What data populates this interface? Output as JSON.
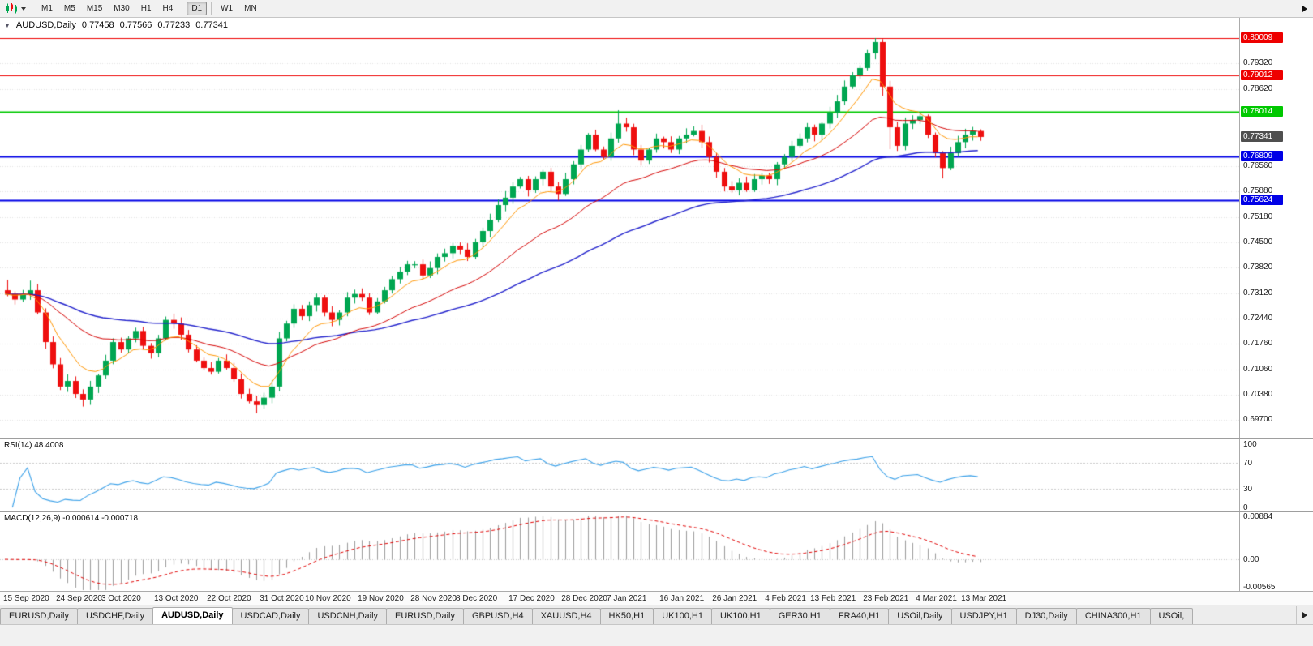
{
  "toolbar": {
    "timeframes": [
      {
        "label": "M1",
        "active": false,
        "gap_after": false
      },
      {
        "label": "M5",
        "active": false,
        "gap_after": false
      },
      {
        "label": "M15",
        "active": false,
        "gap_after": false
      },
      {
        "label": "M30",
        "active": false,
        "gap_after": false
      },
      {
        "label": "H1",
        "active": false,
        "gap_after": false
      },
      {
        "label": "H4",
        "active": false,
        "gap_after": true
      },
      {
        "label": "D1",
        "active": true,
        "gap_after": true
      },
      {
        "label": "W1",
        "active": false,
        "gap_after": false
      },
      {
        "label": "MN",
        "active": false,
        "gap_after": false
      }
    ]
  },
  "icons": {
    "one_click_arrow": "▼"
  },
  "chart_header": {
    "symbol": "AUDUSD,Daily",
    "open": "0.77458",
    "high": "0.77566",
    "low": "0.77233",
    "close": "0.77341"
  },
  "chart_data": {
    "type": "candlestick",
    "title": "AUDUSD,Daily",
    "first_open": 0.732,
    "closes": [
      0.731,
      0.7295,
      0.7308,
      0.732,
      0.726,
      0.718,
      0.712,
      0.706,
      0.7075,
      0.704,
      0.7025,
      0.706,
      0.709,
      0.713,
      0.718,
      0.716,
      0.719,
      0.721,
      0.717,
      0.715,
      0.719,
      0.724,
      0.723,
      0.72,
      0.716,
      0.713,
      0.711,
      0.71,
      0.713,
      0.711,
      0.708,
      0.704,
      0.702,
      0.701,
      0.703,
      0.706,
      0.719,
      0.723,
      0.727,
      0.725,
      0.728,
      0.73,
      0.726,
      0.724,
      0.726,
      0.73,
      0.731,
      0.73,
      0.726,
      0.729,
      0.732,
      0.735,
      0.737,
      0.739,
      0.739,
      0.736,
      0.738,
      0.741,
      0.742,
      0.744,
      0.743,
      0.741,
      0.745,
      0.748,
      0.751,
      0.755,
      0.757,
      0.76,
      0.762,
      0.759,
      0.762,
      0.764,
      0.76,
      0.758,
      0.762,
      0.766,
      0.77,
      0.774,
      0.77,
      0.768,
      0.773,
      0.777,
      0.776,
      0.77,
      0.767,
      0.77,
      0.773,
      0.772,
      0.77,
      0.773,
      0.774,
      0.775,
      0.772,
      0.768,
      0.764,
      0.76,
      0.759,
      0.761,
      0.759,
      0.762,
      0.763,
      0.762,
      0.766,
      0.768,
      0.771,
      0.773,
      0.776,
      0.774,
      0.777,
      0.78,
      0.783,
      0.787,
      0.79,
      0.792,
      0.796,
      0.799,
      0.787,
      0.776,
      0.771,
      0.777,
      0.778,
      0.779,
      0.774,
      0.769,
      0.765,
      0.769,
      0.772,
      0.774,
      0.775,
      0.7734
    ],
    "wick_overrides": {
      "0": {
        "high": 0.7348
      },
      "3": {
        "high": 0.7346
      },
      "10": {
        "low": 0.7006
      },
      "21": {
        "high": 0.7249
      },
      "33": {
        "low": 0.6988
      },
      "81": {
        "high": 0.7806
      },
      "115": {
        "high": 0.8001
      },
      "116": {
        "low": 0.7845
      },
      "117": {
        "low": 0.7701
      },
      "124": {
        "low": 0.7622
      }
    },
    "x_labels": [
      "15 Sep 2020",
      "24 Sep 2020",
      "3 Oct 2020",
      "13 Oct 2020",
      "22 Oct 2020",
      "31 Oct 2020",
      "10 Nov 2020",
      "19 Nov 2020",
      "28 Nov 2020",
      "8 Dec 2020",
      "17 Dec 2020",
      "28 Dec 2020",
      "7 Jan 2021",
      "16 Jan 2021",
      "26 Jan 2021",
      "4 Feb 2021",
      "13 Feb 2021",
      "23 Feb 2021",
      "4 Mar 2021",
      "13 Mar 2021"
    ],
    "label_step": 6.7,
    "y_ticks": [
      0.7932,
      0.7862,
      0.7656,
      0.7588,
      0.7518,
      0.745,
      0.7382,
      0.7312,
      0.7244,
      0.7176,
      0.7106,
      0.7038,
      0.697
    ],
    "price_scale": {
      "top": 0.80556,
      "bottom": 0.69219
    },
    "hlines": [
      {
        "price": 0.80009,
        "color": "#ee0000",
        "width": 1
      },
      {
        "price": 0.79012,
        "color": "#ee0000",
        "width": 1
      },
      {
        "price": 0.78014,
        "color": "#00c800",
        "width": 2
      },
      {
        "price": 0.76809,
        "color": "#0000e6",
        "width": 2
      },
      {
        "price": 0.75624,
        "color": "#0000e6",
        "width": 2
      }
    ],
    "current_price": 0.77341,
    "moving_averages": [
      {
        "period": 55,
        "color": "#2222cc",
        "width": 1.4
      },
      {
        "period": 24,
        "color": "#d40000",
        "width": 1
      },
      {
        "period": 8,
        "color": "#ff9500",
        "width": 1
      }
    ],
    "colors": {
      "up": "#00a651",
      "down": "#ee0f0f",
      "grid": "#e3e3e3",
      "current_tag": "#4f4f4f"
    },
    "indicators": {
      "rsi": {
        "label": "RSI(14) 48.4008",
        "period": 14,
        "levels": [
          100,
          70,
          30,
          0
        ],
        "dotted_levels": [
          70,
          30
        ],
        "line_color": "#3aa0e8"
      },
      "macd": {
        "label": "MACD(12,26,9) -0.000614 -0.000718",
        "fast": 12,
        "slow": 26,
        "signal": 9,
        "y_max": 0.00884,
        "y_min": -0.00565,
        "y_labels": [
          {
            "text": "0.00884",
            "value": 0.00884
          },
          {
            "text": "0.00",
            "value": 0
          },
          {
            "text": "-0.00565",
            "value": -0.00565
          }
        ],
        "hist_color": "#9b9b9b",
        "signal_color": "#e00000"
      }
    }
  },
  "tabs": {
    "items": [
      {
        "label": "EURUSD,Daily",
        "active": false
      },
      {
        "label": "USDCHF,Daily",
        "active": false
      },
      {
        "label": "AUDUSD,Daily",
        "active": true
      },
      {
        "label": "USDCAD,Daily",
        "active": false
      },
      {
        "label": "USDCNH,Daily",
        "active": false
      },
      {
        "label": "EURUSD,Daily",
        "active": false
      },
      {
        "label": "GBPUSD,H4",
        "active": false
      },
      {
        "label": "XAUUSD,H4",
        "active": false
      },
      {
        "label": "HK50,H1",
        "active": false
      },
      {
        "label": "UK100,H1",
        "active": false
      },
      {
        "label": "UK100,H1",
        "active": false
      },
      {
        "label": "GER30,H1",
        "active": false
      },
      {
        "label": "FRA40,H1",
        "active": false
      },
      {
        "label": "USOil,Daily",
        "active": false
      },
      {
        "label": "USDJPY,H1",
        "active": false
      },
      {
        "label": "DJ30,Daily",
        "active": false
      },
      {
        "label": "CHINA300,H1",
        "active": false
      },
      {
        "label": "USOil,",
        "active": false
      }
    ]
  }
}
